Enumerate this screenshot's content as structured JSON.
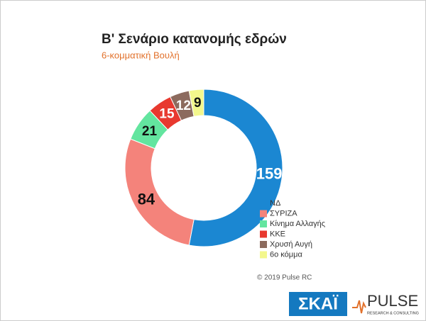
{
  "chart_data": {
    "type": "donut",
    "title": "Β' Σενάριο κατανομής εδρών",
    "subtitle": "6-κομματική Βουλή",
    "categories": [
      "ΝΔ",
      "ΣΥΡΙΖΑ",
      "Κίνημα Αλλαγής",
      "ΚΚΕ",
      "Χρυσή Αυγή",
      "6ο κόμμα"
    ],
    "values": [
      159,
      84,
      21,
      15,
      12,
      9
    ],
    "colors": [
      "#1b87d2",
      "#f4837b",
      "#63e59f",
      "#e8392f",
      "#8c6b5e",
      "#f3f78c"
    ]
  },
  "copyright": "© 2019 Pulse RC",
  "logos": {
    "skai": "ΣΚΑΪ",
    "pulse": "PULSE",
    "pulse_tagline": "RESEARCH & CONSULTING"
  }
}
